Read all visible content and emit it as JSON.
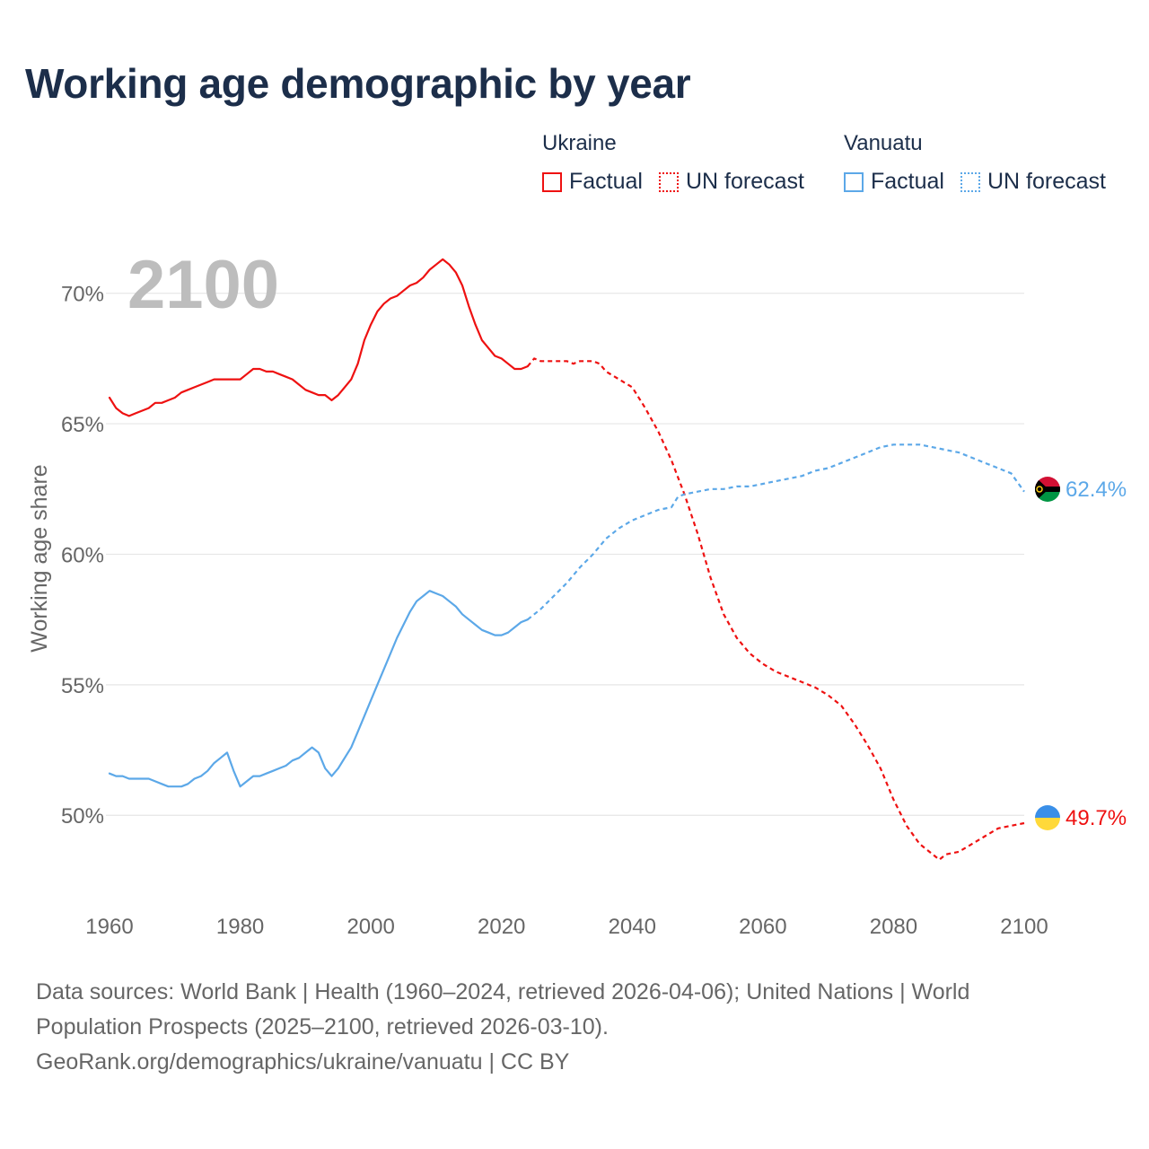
{
  "title": "Working age demographic by year",
  "colors": {
    "ukraine": "#ee1111",
    "vanuatu": "#5ca8e8",
    "grid": "#e6e6e6",
    "axis_text": "#666666",
    "year_watermark": "#bdbdbd",
    "title": "#1c2e4a"
  },
  "legend": {
    "ukraine": {
      "country": "Ukraine",
      "factual": "Factual",
      "forecast": "UN forecast"
    },
    "vanuatu": {
      "country": "Vanuatu",
      "factual": "Factual",
      "forecast": "UN forecast"
    }
  },
  "year_display": "2100",
  "end_labels": {
    "vanuatu": "62.4%",
    "ukraine": "49.7%"
  },
  "flags": {
    "vanuatu": "vanuatu-flag-icon",
    "ukraine": "ukraine-flag-icon"
  },
  "footer": {
    "line1": "Data sources: World Bank | Health (1960–2024, retrieved 2026-04-06); United Nations | World",
    "line2": "Population Prospects (2025–2100, retrieved 2026-03-10).",
    "line3": "GeoRank.org/demographics/ukraine/vanuatu | CC BY"
  },
  "chart_data": {
    "type": "line",
    "title": "Working age demographic by year",
    "xlabel": "",
    "ylabel": "Working age share",
    "xlim": [
      1960,
      2100
    ],
    "ylim": [
      46.5,
      72.5
    ],
    "x_ticks": [
      1960,
      1980,
      2000,
      2020,
      2040,
      2060,
      2080,
      2100
    ],
    "y_ticks": [
      {
        "value": 50,
        "label": "50%"
      },
      {
        "value": 55,
        "label": "55%"
      },
      {
        "value": 60,
        "label": "60%"
      },
      {
        "value": 65,
        "label": "65%"
      },
      {
        "value": 70,
        "label": "70%"
      }
    ],
    "grid": true,
    "series": [
      {
        "name": "Ukraine",
        "kind": "Factual",
        "color_key": "ukraine",
        "dashed": false,
        "points": [
          [
            1960,
            66.0
          ],
          [
            1961,
            65.6
          ],
          [
            1962,
            65.4
          ],
          [
            1963,
            65.3
          ],
          [
            1964,
            65.4
          ],
          [
            1965,
            65.5
          ],
          [
            1966,
            65.6
          ],
          [
            1967,
            65.8
          ],
          [
            1968,
            65.8
          ],
          [
            1969,
            65.9
          ],
          [
            1970,
            66.0
          ],
          [
            1971,
            66.2
          ],
          [
            1972,
            66.3
          ],
          [
            1973,
            66.4
          ],
          [
            1974,
            66.5
          ],
          [
            1975,
            66.6
          ],
          [
            1976,
            66.7
          ],
          [
            1977,
            66.7
          ],
          [
            1978,
            66.7
          ],
          [
            1979,
            66.7
          ],
          [
            1980,
            66.7
          ],
          [
            1981,
            66.9
          ],
          [
            1982,
            67.1
          ],
          [
            1983,
            67.1
          ],
          [
            1984,
            67.0
          ],
          [
            1985,
            67.0
          ],
          [
            1986,
            66.9
          ],
          [
            1987,
            66.8
          ],
          [
            1988,
            66.7
          ],
          [
            1989,
            66.5
          ],
          [
            1990,
            66.3
          ],
          [
            1991,
            66.2
          ],
          [
            1992,
            66.1
          ],
          [
            1993,
            66.1
          ],
          [
            1994,
            65.9
          ],
          [
            1995,
            66.1
          ],
          [
            1996,
            66.4
          ],
          [
            1997,
            66.7
          ],
          [
            1998,
            67.3
          ],
          [
            1999,
            68.2
          ],
          [
            2000,
            68.8
          ],
          [
            2001,
            69.3
          ],
          [
            2002,
            69.6
          ],
          [
            2003,
            69.8
          ],
          [
            2004,
            69.9
          ],
          [
            2005,
            70.1
          ],
          [
            2006,
            70.3
          ],
          [
            2007,
            70.4
          ],
          [
            2008,
            70.6
          ],
          [
            2009,
            70.9
          ],
          [
            2010,
            71.1
          ],
          [
            2011,
            71.3
          ],
          [
            2012,
            71.1
          ],
          [
            2013,
            70.8
          ],
          [
            2014,
            70.3
          ],
          [
            2015,
            69.5
          ],
          [
            2016,
            68.8
          ],
          [
            2017,
            68.2
          ],
          [
            2018,
            67.9
          ],
          [
            2019,
            67.6
          ],
          [
            2020,
            67.5
          ],
          [
            2021,
            67.3
          ],
          [
            2022,
            67.1
          ],
          [
            2023,
            67.1
          ],
          [
            2024,
            67.2
          ]
        ]
      },
      {
        "name": "Ukraine",
        "kind": "UN forecast",
        "color_key": "ukraine",
        "dashed": true,
        "points": [
          [
            2024,
            67.2
          ],
          [
            2025,
            67.5
          ],
          [
            2026,
            67.4
          ],
          [
            2028,
            67.4
          ],
          [
            2030,
            67.4
          ],
          [
            2031,
            67.3
          ],
          [
            2032,
            67.4
          ],
          [
            2034,
            67.4
          ],
          [
            2035,
            67.3
          ],
          [
            2036,
            67.0
          ],
          [
            2038,
            66.7
          ],
          [
            2040,
            66.4
          ],
          [
            2042,
            65.6
          ],
          [
            2044,
            64.7
          ],
          [
            2046,
            63.6
          ],
          [
            2048,
            62.3
          ],
          [
            2050,
            60.8
          ],
          [
            2052,
            59.1
          ],
          [
            2054,
            57.7
          ],
          [
            2056,
            56.8
          ],
          [
            2058,
            56.2
          ],
          [
            2060,
            55.8
          ],
          [
            2062,
            55.5
          ],
          [
            2064,
            55.3
          ],
          [
            2066,
            55.1
          ],
          [
            2068,
            54.9
          ],
          [
            2070,
            54.6
          ],
          [
            2072,
            54.2
          ],
          [
            2074,
            53.5
          ],
          [
            2076,
            52.7
          ],
          [
            2078,
            51.8
          ],
          [
            2080,
            50.6
          ],
          [
            2082,
            49.6
          ],
          [
            2084,
            48.9
          ],
          [
            2086,
            48.5
          ],
          [
            2087,
            48.3
          ],
          [
            2088,
            48.5
          ],
          [
            2090,
            48.6
          ],
          [
            2092,
            48.9
          ],
          [
            2094,
            49.2
          ],
          [
            2096,
            49.5
          ],
          [
            2098,
            49.6
          ],
          [
            2100,
            49.7
          ]
        ]
      },
      {
        "name": "Vanuatu",
        "kind": "Factual",
        "color_key": "vanuatu",
        "dashed": false,
        "points": [
          [
            1960,
            51.6
          ],
          [
            1961,
            51.5
          ],
          [
            1962,
            51.5
          ],
          [
            1963,
            51.4
          ],
          [
            1964,
            51.4
          ],
          [
            1965,
            51.4
          ],
          [
            1966,
            51.4
          ],
          [
            1967,
            51.3
          ],
          [
            1968,
            51.2
          ],
          [
            1969,
            51.1
          ],
          [
            1970,
            51.1
          ],
          [
            1971,
            51.1
          ],
          [
            1972,
            51.2
          ],
          [
            1973,
            51.4
          ],
          [
            1974,
            51.5
          ],
          [
            1975,
            51.7
          ],
          [
            1976,
            52.0
          ],
          [
            1977,
            52.2
          ],
          [
            1978,
            52.4
          ],
          [
            1979,
            51.7
          ],
          [
            1980,
            51.1
          ],
          [
            1981,
            51.3
          ],
          [
            1982,
            51.5
          ],
          [
            1983,
            51.5
          ],
          [
            1984,
            51.6
          ],
          [
            1985,
            51.7
          ],
          [
            1986,
            51.8
          ],
          [
            1987,
            51.9
          ],
          [
            1988,
            52.1
          ],
          [
            1989,
            52.2
          ],
          [
            1990,
            52.4
          ],
          [
            1991,
            52.6
          ],
          [
            1992,
            52.4
          ],
          [
            1993,
            51.8
          ],
          [
            1994,
            51.5
          ],
          [
            1995,
            51.8
          ],
          [
            1996,
            52.2
          ],
          [
            1997,
            52.6
          ],
          [
            1998,
            53.2
          ],
          [
            1999,
            53.8
          ],
          [
            2000,
            54.4
          ],
          [
            2001,
            55.0
          ],
          [
            2002,
            55.6
          ],
          [
            2003,
            56.2
          ],
          [
            2004,
            56.8
          ],
          [
            2005,
            57.3
          ],
          [
            2006,
            57.8
          ],
          [
            2007,
            58.2
          ],
          [
            2008,
            58.4
          ],
          [
            2009,
            58.6
          ],
          [
            2010,
            58.5
          ],
          [
            2011,
            58.4
          ],
          [
            2012,
            58.2
          ],
          [
            2013,
            58.0
          ],
          [
            2014,
            57.7
          ],
          [
            2015,
            57.5
          ],
          [
            2016,
            57.3
          ],
          [
            2017,
            57.1
          ],
          [
            2018,
            57.0
          ],
          [
            2019,
            56.9
          ],
          [
            2020,
            56.9
          ],
          [
            2021,
            57.0
          ],
          [
            2022,
            57.2
          ],
          [
            2023,
            57.4
          ],
          [
            2024,
            57.5
          ]
        ]
      },
      {
        "name": "Vanuatu",
        "kind": "UN forecast",
        "color_key": "vanuatu",
        "dashed": true,
        "points": [
          [
            2024,
            57.5
          ],
          [
            2026,
            57.9
          ],
          [
            2028,
            58.4
          ],
          [
            2030,
            58.9
          ],
          [
            2032,
            59.5
          ],
          [
            2034,
            60.0
          ],
          [
            2036,
            60.6
          ],
          [
            2038,
            61.0
          ],
          [
            2040,
            61.3
          ],
          [
            2042,
            61.5
          ],
          [
            2044,
            61.7
          ],
          [
            2046,
            61.8
          ],
          [
            2047,
            62.2
          ],
          [
            2048,
            62.3
          ],
          [
            2050,
            62.4
          ],
          [
            2052,
            62.5
          ],
          [
            2054,
            62.5
          ],
          [
            2056,
            62.6
          ],
          [
            2058,
            62.6
          ],
          [
            2060,
            62.7
          ],
          [
            2062,
            62.8
          ],
          [
            2064,
            62.9
          ],
          [
            2066,
            63.0
          ],
          [
            2068,
            63.2
          ],
          [
            2070,
            63.3
          ],
          [
            2072,
            63.5
          ],
          [
            2074,
            63.7
          ],
          [
            2076,
            63.9
          ],
          [
            2078,
            64.1
          ],
          [
            2080,
            64.2
          ],
          [
            2082,
            64.2
          ],
          [
            2084,
            64.2
          ],
          [
            2086,
            64.1
          ],
          [
            2088,
            64.0
          ],
          [
            2090,
            63.9
          ],
          [
            2092,
            63.7
          ],
          [
            2094,
            63.5
          ],
          [
            2096,
            63.3
          ],
          [
            2098,
            63.1
          ],
          [
            2100,
            62.4
          ]
        ]
      }
    ]
  }
}
